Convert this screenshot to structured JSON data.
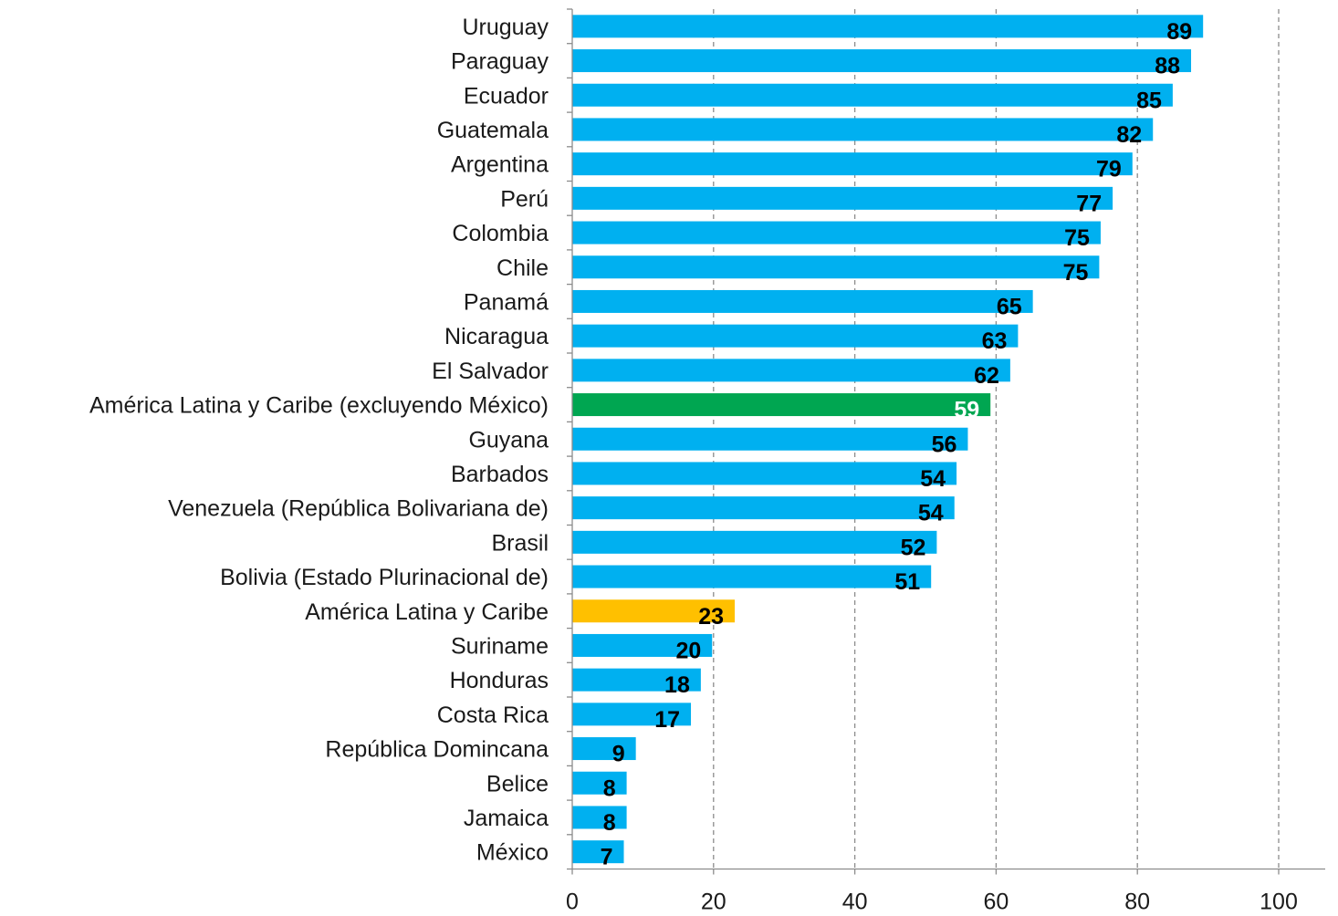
{
  "chart_data": {
    "type": "bar",
    "orientation": "horizontal",
    "title": "",
    "xlabel": "",
    "ylabel": "",
    "xlim": [
      0,
      100
    ],
    "x_ticks": [
      "0",
      "20",
      "40",
      "60",
      "80",
      "100"
    ],
    "grid": "vertical dashed",
    "categories": [
      "Uruguay",
      "Paraguay",
      "Ecuador",
      "Guatemala",
      "Argentina",
      "Perú",
      "Colombia",
      "Chile",
      "Panamá",
      "Nicaragua",
      "El Salvador",
      "América Latina y Caribe (excluyendo México)",
      "Guyana",
      "Barbados",
      "Venezuela (República Bolivariana de)",
      "Brasil",
      "Bolivia (Estado Plurinacional de)",
      "América Latina y Caribe",
      "Suriname",
      "Honduras",
      "Costa Rica",
      "República Domincana",
      "Belice",
      "Jamaica",
      "México"
    ],
    "values": [
      89.3,
      87.6,
      85.0,
      82.2,
      79.3,
      76.5,
      74.8,
      74.6,
      65.2,
      63.1,
      62.0,
      59.2,
      56.0,
      54.4,
      54.1,
      51.6,
      50.8,
      23.0,
      19.8,
      18.2,
      16.8,
      9.0,
      7.7,
      7.7,
      7.3
    ],
    "value_labels": [
      "89",
      "88",
      "85",
      "82",
      "79",
      "77",
      "75",
      "75",
      "65",
      "63",
      "62",
      "59",
      "56",
      "54",
      "54",
      "52",
      "51",
      "23",
      "20",
      "18",
      "17",
      "9",
      "8",
      "8",
      "7"
    ],
    "bar_colors": [
      "#00B0F0",
      "#00B0F0",
      "#00B0F0",
      "#00B0F0",
      "#00B0F0",
      "#00B0F0",
      "#00B0F0",
      "#00B0F0",
      "#00B0F0",
      "#00B0F0",
      "#00B0F0",
      "#00A651",
      "#00B0F0",
      "#00B0F0",
      "#00B0F0",
      "#00B0F0",
      "#00B0F0",
      "#FFC000",
      "#00B0F0",
      "#00B0F0",
      "#00B0F0",
      "#00B0F0",
      "#00B0F0",
      "#00B0F0",
      "#00B0F0"
    ],
    "label_colors": [
      "#000000",
      "#000000",
      "#000000",
      "#000000",
      "#000000",
      "#000000",
      "#000000",
      "#000000",
      "#000000",
      "#000000",
      "#000000",
      "#FFFFFF",
      "#000000",
      "#000000",
      "#000000",
      "#000000",
      "#000000",
      "#000000",
      "#000000",
      "#000000",
      "#000000",
      "#000000",
      "#000000",
      "#000000",
      "#000000"
    ]
  }
}
